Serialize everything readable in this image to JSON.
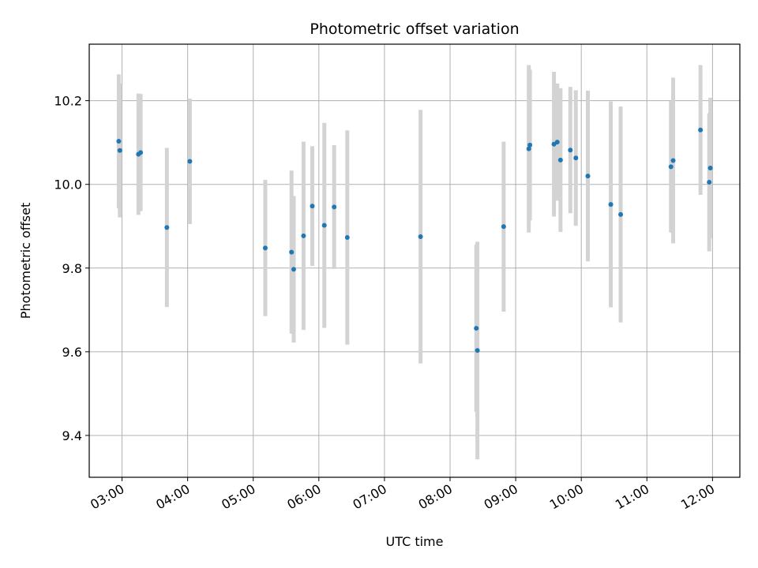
{
  "chart_data": {
    "type": "scatter",
    "title": "Photometric offset variation",
    "xlabel": "UTC time",
    "ylabel": "Photometric offset",
    "x_unit": "time of day (HH:MM)",
    "xlim": [
      "02:30",
      "12:25"
    ],
    "ylim": [
      9.3,
      10.335
    ],
    "grid": true,
    "x_ticks": [
      "03:00",
      "04:00",
      "05:00",
      "06:00",
      "07:00",
      "08:00",
      "09:00",
      "10:00",
      "11:00",
      "12:00"
    ],
    "y_ticks": [
      "9.4",
      "9.6",
      "9.8",
      "10.0",
      "10.2"
    ],
    "marker_color": "#1f77b4",
    "errorbar_color": "#d3d3d3",
    "points": [
      {
        "x": "02:57",
        "y": 10.103,
        "err": 0.16
      },
      {
        "x": "02:58",
        "y": 10.081,
        "err": 0.16
      },
      {
        "x": "03:15",
        "y": 10.072,
        "err": 0.145
      },
      {
        "x": "03:17",
        "y": 10.076,
        "err": 0.14
      },
      {
        "x": "03:41",
        "y": 9.897,
        "err": 0.19
      },
      {
        "x": "04:02",
        "y": 10.055,
        "err": 0.15
      },
      {
        "x": "05:11",
        "y": 9.848,
        "err": 0.163
      },
      {
        "x": "05:35",
        "y": 9.838,
        "err": 0.195
      },
      {
        "x": "05:37",
        "y": 9.797,
        "err": 0.175
      },
      {
        "x": "05:46",
        "y": 9.877,
        "err": 0.225
      },
      {
        "x": "05:54",
        "y": 9.948,
        "err": 0.143
      },
      {
        "x": "06:05",
        "y": 9.902,
        "err": 0.245
      },
      {
        "x": "06:14",
        "y": 9.946,
        "err": 0.148
      },
      {
        "x": "06:26",
        "y": 9.873,
        "err": 0.256
      },
      {
        "x": "07:33",
        "y": 9.875,
        "err": 0.303
      },
      {
        "x": "08:24",
        "y": 9.656,
        "err": 0.2
      },
      {
        "x": "08:25",
        "y": 9.603,
        "err": 0.26
      },
      {
        "x": "08:49",
        "y": 9.899,
        "err": 0.203
      },
      {
        "x": "09:12",
        "y": 10.085,
        "err": 0.2
      },
      {
        "x": "09:13",
        "y": 10.094,
        "err": 0.18
      },
      {
        "x": "09:35",
        "y": 10.096,
        "err": 0.173
      },
      {
        "x": "09:38",
        "y": 10.101,
        "err": 0.14
      },
      {
        "x": "09:41",
        "y": 10.058,
        "err": 0.172
      },
      {
        "x": "09:50",
        "y": 10.082,
        "err": 0.151
      },
      {
        "x": "09:55",
        "y": 10.063,
        "err": 0.162
      },
      {
        "x": "10:06",
        "y": 10.02,
        "err": 0.204
      },
      {
        "x": "10:27",
        "y": 9.952,
        "err": 0.246
      },
      {
        "x": "10:36",
        "y": 9.928,
        "err": 0.258
      },
      {
        "x": "11:22",
        "y": 10.042,
        "err": 0.157
      },
      {
        "x": "11:24",
        "y": 10.057,
        "err": 0.198
      },
      {
        "x": "11:49",
        "y": 10.13,
        "err": 0.155
      },
      {
        "x": "11:57",
        "y": 10.005,
        "err": 0.165
      },
      {
        "x": "11:58",
        "y": 10.039,
        "err": 0.168
      }
    ]
  }
}
